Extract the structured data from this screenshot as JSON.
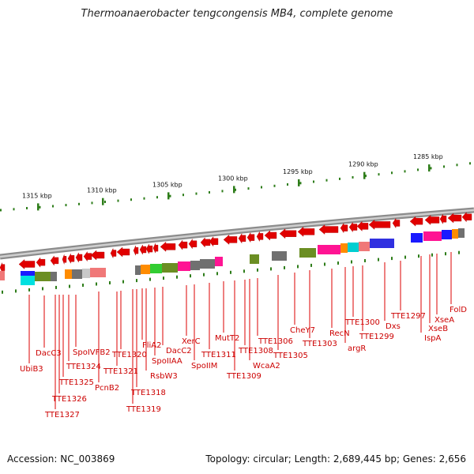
{
  "title": "Thermoanaerobacter tengcongensis MB4, complete genome",
  "footer": {
    "accession": "Accession: NC_003869",
    "summary": "Topology: circular; Length: 2,689,445 bp; Genes: 2,656"
  },
  "colors": {
    "gene_arrow": "#e00000",
    "label_text": "#cc0000",
    "leader_line": "#dd0000",
    "tick": "#2e7d1a",
    "backbone_outer": "#8c8c8c",
    "backbone_inner": "#cfcfcf"
  },
  "ruler": [
    {
      "label": "1315 kbp"
    },
    {
      "label": "1310 kbp"
    },
    {
      "label": "1305 kbp"
    },
    {
      "label": "1300 kbp"
    },
    {
      "label": "1295 kbp"
    },
    {
      "label": "1290 kbp"
    },
    {
      "label": "1285 kbp"
    }
  ],
  "genes": [
    {
      "name": "UbiB3"
    },
    {
      "name": "DacC3"
    },
    {
      "name": "TTE1327"
    },
    {
      "name": "TTE1326"
    },
    {
      "name": "TTE1325"
    },
    {
      "name": "TTE1324"
    },
    {
      "name": "SpoIVFB2"
    },
    {
      "name": "PcnB2"
    },
    {
      "name": "TTE1321"
    },
    {
      "name": "TTE1320"
    },
    {
      "name": "TTE1319"
    },
    {
      "name": "TTE1318"
    },
    {
      "name": "FliA2"
    },
    {
      "name": "RsbW3"
    },
    {
      "name": "SpoIIAA"
    },
    {
      "name": "DacC2"
    },
    {
      "name": "XerC"
    },
    {
      "name": "SpoIIM"
    },
    {
      "name": "TTE1311"
    },
    {
      "name": "MutT2"
    },
    {
      "name": "TTE1309"
    },
    {
      "name": "TTE1308"
    },
    {
      "name": "WcaA2"
    },
    {
      "name": "TTE1306"
    },
    {
      "name": "TTE1305"
    },
    {
      "name": "CheY7"
    },
    {
      "name": "TTE1303"
    },
    {
      "name": "RecN"
    },
    {
      "name": "argR"
    },
    {
      "name": "TTE1300"
    },
    {
      "name": "TTE1299"
    },
    {
      "name": "Dxs"
    },
    {
      "name": "TTE1297"
    },
    {
      "name": "IspA"
    },
    {
      "name": "XseB"
    },
    {
      "name": "XseA"
    },
    {
      "name": "FolD"
    }
  ]
}
